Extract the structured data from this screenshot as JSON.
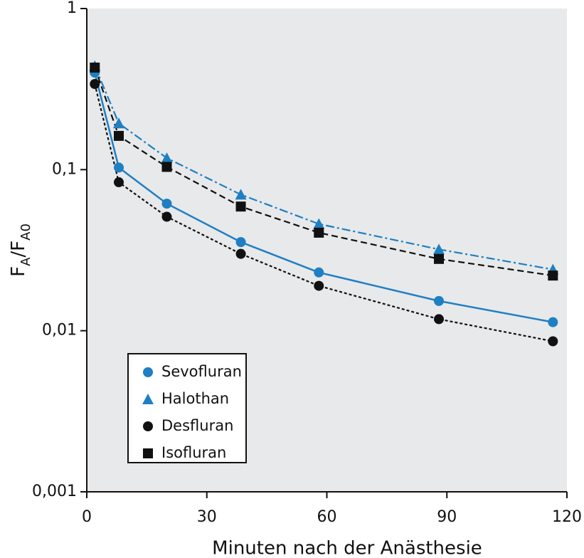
{
  "chart_data": {
    "type": "line",
    "xlabel": "Minuten nach der Anästhesie",
    "ylabel": [
      {
        "text": "F"
      },
      {
        "text": "A",
        "sub": true
      },
      {
        "text": "/F"
      },
      {
        "text": "A0",
        "sub": true
      }
    ],
    "x": [
      2,
      8,
      20,
      38.5,
      58,
      88,
      116.5
    ],
    "series": [
      {
        "name": "Sevofluran",
        "color": "#1f7fc3",
        "marker": "circle",
        "dash": "solid",
        "values": [
          0.4,
          0.103,
          0.0615,
          0.0355,
          0.023,
          0.0153,
          0.0113
        ]
      },
      {
        "name": "Halothan",
        "color": "#1f7fc3",
        "marker": "triangle",
        "dash": "dashdot",
        "values": [
          0.44,
          0.194,
          0.118,
          0.07,
          0.046,
          0.032,
          0.024
        ]
      },
      {
        "name": "Desfluran",
        "color": "#111111",
        "marker": "circle",
        "dash": "dotted",
        "values": [
          0.34,
          0.0835,
          0.051,
          0.03,
          0.019,
          0.0118,
          0.0086
        ]
      },
      {
        "name": "Isofluran",
        "color": "#111111",
        "marker": "square",
        "dash": "dashed",
        "values": [
          0.43,
          0.162,
          0.104,
          0.059,
          0.0406,
          0.0279,
          0.022
        ]
      }
    ],
    "xlim": [
      0,
      120
    ],
    "xticks": [
      0,
      30,
      60,
      90,
      120
    ],
    "ylim": [
      0.001,
      1
    ],
    "log_y": true,
    "yticks": [
      {
        "value": 0.001,
        "label": "0,001"
      },
      {
        "value": 0.01,
        "label": "0,01"
      },
      {
        "value": 0.1,
        "label": "0,1"
      },
      1
    ],
    "background": "#e8e9ea",
    "legend": "lower left"
  }
}
